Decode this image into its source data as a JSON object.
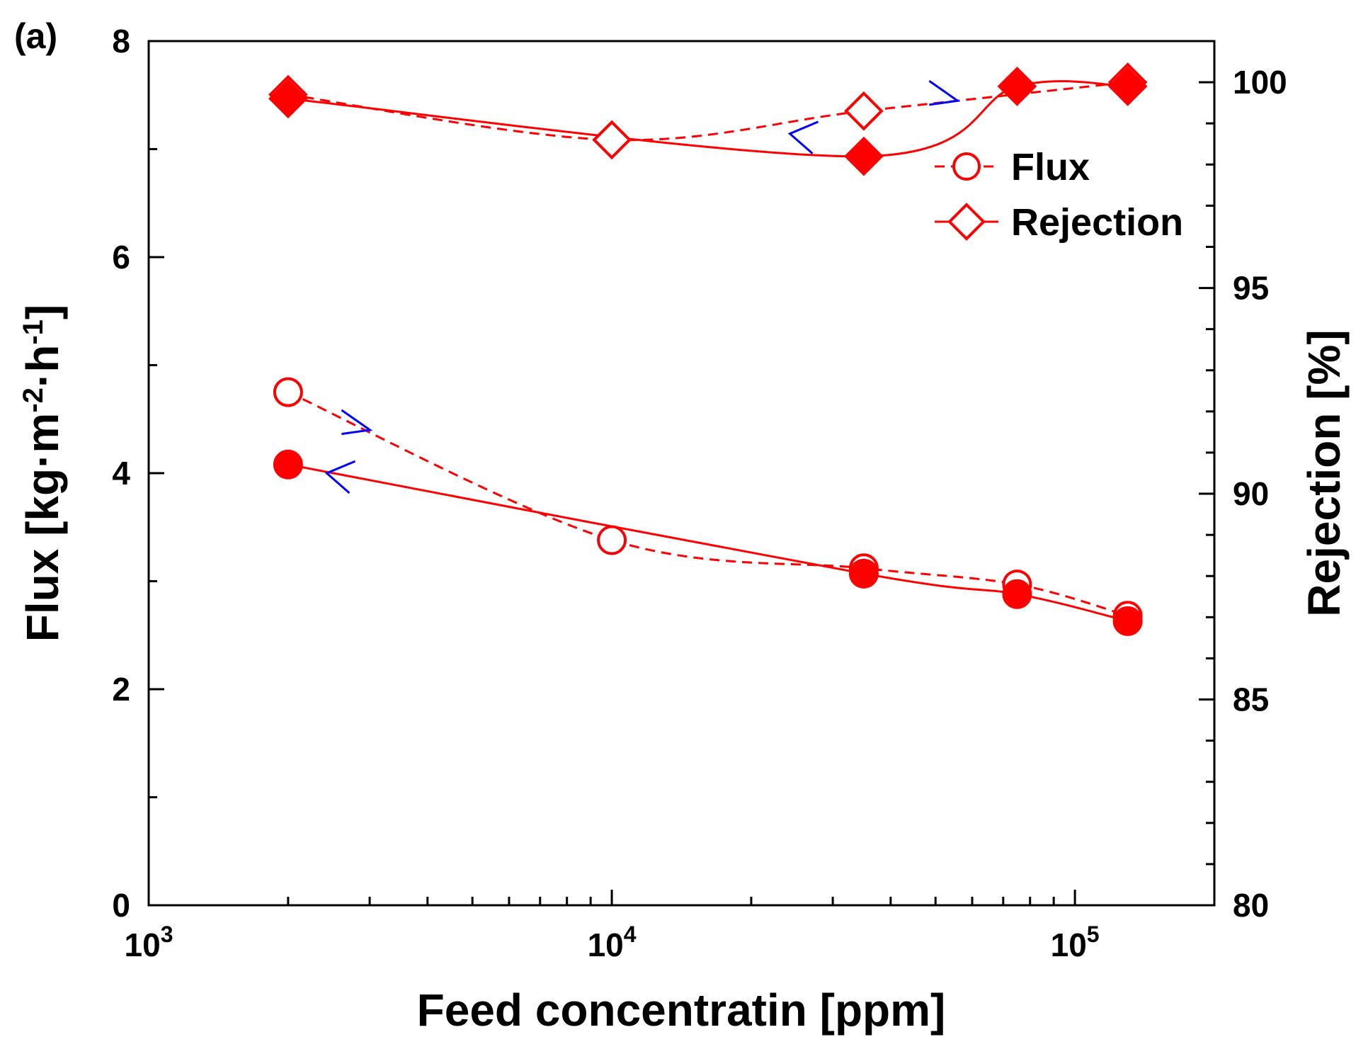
{
  "chart_data": {
    "type": "scatter",
    "panel_label": "(a)",
    "xlabel": "Feed concentratin [ppm]",
    "ylabel_left": "Flux [kg·m-2·h-1]",
    "ylabel_left_parts": {
      "main": "Flux [kg·m",
      "exp1": "-2",
      "mid": "·h",
      "exp2": "-1",
      "end": "]"
    },
    "ylabel_right": "Rejection [%]",
    "x_scale": "log",
    "xlim": [
      1000,
      200000
    ],
    "x_ticks": [
      {
        "value": 1000,
        "base": "10",
        "exp": "3"
      },
      {
        "value": 10000,
        "base": "10",
        "exp": "4"
      },
      {
        "value": 100000,
        "base": "10",
        "exp": "5"
      }
    ],
    "ylim_left": [
      0,
      8
    ],
    "y_ticks_left": [
      0,
      2,
      4,
      6,
      8
    ],
    "ylim_right": [
      80,
      101
    ],
    "y_ticks_right": [
      80,
      85,
      90,
      95,
      100
    ],
    "color": "#ff0000",
    "arrow_color": "#0000ff",
    "legend": {
      "position": "top-right",
      "entries": [
        {
          "label": "Flux",
          "marker": "circle"
        },
        {
          "label": "Rejection",
          "marker": "diamond"
        }
      ]
    },
    "series": [
      {
        "name": "Flux (open)",
        "axis": "left",
        "marker": "circle",
        "filled": false,
        "line": "dashed",
        "x": [
          2000,
          10000,
          35000,
          75000,
          130000
        ],
        "y": [
          4.75,
          3.38,
          3.12,
          2.97,
          2.68
        ]
      },
      {
        "name": "Flux (filled)",
        "axis": "left",
        "marker": "circle",
        "filled": true,
        "line": "solid",
        "x": [
          2000,
          35000,
          75000,
          130000
        ],
        "y": [
          4.08,
          3.07,
          2.88,
          2.63
        ]
      },
      {
        "name": "Rejection (open)",
        "axis": "right",
        "marker": "diamond",
        "filled": false,
        "line": "dashed",
        "x": [
          2000,
          10000,
          35000,
          130000
        ],
        "y": [
          99.7,
          98.6,
          99.3,
          100
        ]
      },
      {
        "name": "Rejection (filled)",
        "axis": "right",
        "marker": "diamond",
        "filled": true,
        "line": "solid",
        "x": [
          2000,
          35000,
          75000,
          130000
        ],
        "y": [
          99.6,
          98.2,
          99.9,
          99.9
        ]
      }
    ],
    "direction_arrows": [
      {
        "axis": "left",
        "direction": "right",
        "x": 2800,
        "y": 4.4
      },
      {
        "axis": "left",
        "direction": "left",
        "x": 2600,
        "y": 4.0
      },
      {
        "axis": "right",
        "direction": "right",
        "x": 52000,
        "y": 99.55
      },
      {
        "axis": "right",
        "direction": "left",
        "x": 26000,
        "y": 98.75
      }
    ]
  }
}
